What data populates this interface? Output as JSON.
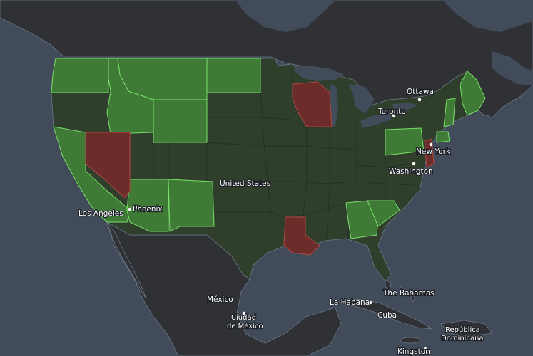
{
  "colors": {
    "water": "#414b59",
    "land": "#2f3134",
    "land_border": "#4c5057",
    "coast": "#6b7787",
    "us_base": "#2f3f2c",
    "us_border": "#243024",
    "state_green": "#3f7a36",
    "state_green_border": "#79e06a",
    "state_red": "#6b2c2a",
    "state_red_border": "#b44842",
    "city_dot": "#ffffff"
  },
  "legend_groups": {
    "green": [
      "Washington",
      "Idaho",
      "Montana",
      "North Dakota",
      "Wyoming",
      "California",
      "Arizona",
      "New Mexico",
      "Pennsylvania",
      "Georgia",
      "South Carolina",
      "Maine",
      "Vermont",
      "New Jersey"
    ],
    "red": [
      "Nevada",
      "Wisconsin",
      "Louisiana",
      "Delaware"
    ]
  },
  "labels": {
    "ottawa": "Ottawa",
    "toronto": "Toronto",
    "new_york": "New York",
    "washington": "Washington",
    "united_states": "United States",
    "los_angeles": "Los Angeles",
    "phoenix": "Phoenix",
    "mexico": "México",
    "ciudad_line1": "Ciudad",
    "ciudad_line2": "de México",
    "la_habana": "La Habana",
    "cuba": "Cuba",
    "bahamas": "The Bahamas",
    "republica_line1": "República",
    "republica_line2": "Dominicana",
    "kingston": "Kingston"
  }
}
